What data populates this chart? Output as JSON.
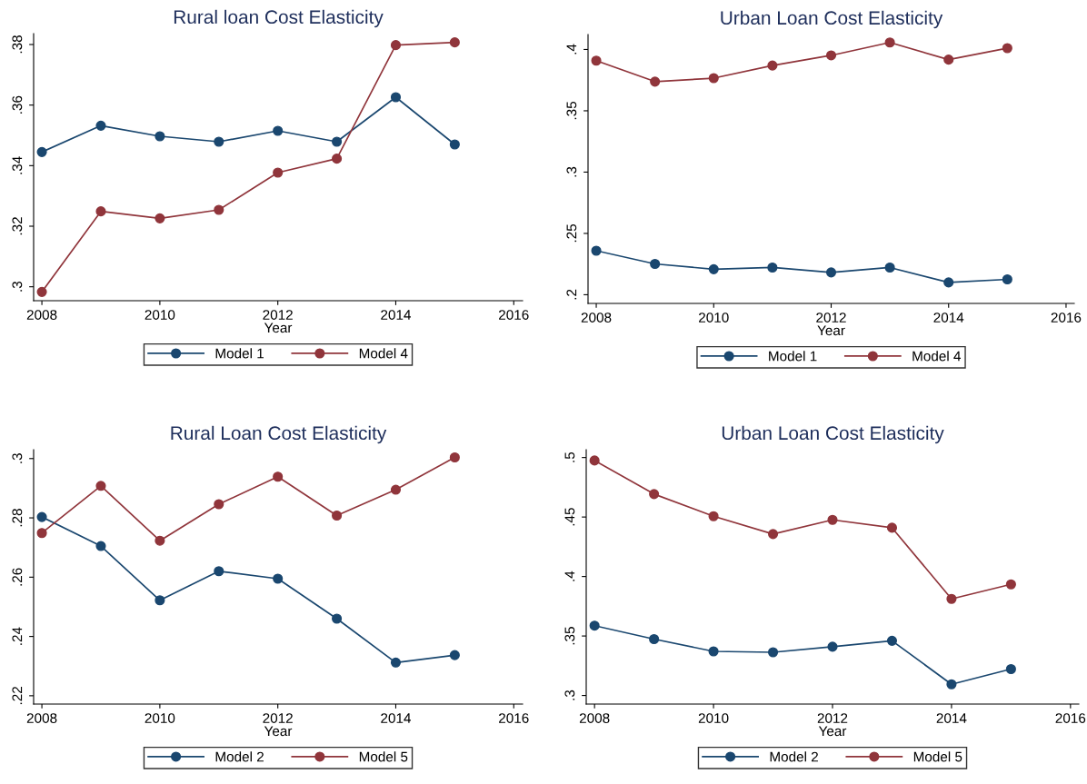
{
  "chart_data": [
    {
      "type": "line",
      "title": "Rural loan Cost Elasticity",
      "xlabel": "Year",
      "x": [
        2008,
        2009,
        2010,
        2011,
        2012,
        2013,
        2014,
        2015
      ],
      "series": [
        {
          "name": "Model 1",
          "color": "#1a476f",
          "values": [
            0.3445,
            0.3532,
            0.3497,
            0.3479,
            0.3515,
            0.3479,
            0.3626,
            0.347
          ]
        },
        {
          "name": "Model 4",
          "color": "#90353b",
          "values": [
            0.2983,
            0.3249,
            0.3226,
            0.3254,
            0.3377,
            0.3423,
            0.3798,
            0.3807
          ]
        }
      ],
      "xlim": [
        2007.86,
        2016.15
      ],
      "xticks": [
        2008,
        2010,
        2012,
        2014,
        2016
      ],
      "ylim": [
        0.2954,
        0.3836
      ],
      "yticks": [
        {
          "value": 0.3,
          "label": ".3"
        },
        {
          "value": 0.32,
          "label": ".32"
        },
        {
          "value": 0.34,
          "label": ".34"
        },
        {
          "value": 0.36,
          "label": ".36"
        },
        {
          "value": 0.38,
          "label": ".38"
        }
      ],
      "grid": false,
      "legend": "bottom",
      "marker": "circle",
      "line_style": "solid"
    },
    {
      "type": "line",
      "title": "Urban Loan Cost Elasticity",
      "xlabel": "Year",
      "x": [
        2008,
        2009,
        2010,
        2011,
        2012,
        2013,
        2014,
        2015
      ],
      "series": [
        {
          "name": "Model 1",
          "color": "#1a476f",
          "values": [
            0.2359,
            0.2251,
            0.2208,
            0.2222,
            0.2182,
            0.2222,
            0.21,
            0.2125
          ]
        },
        {
          "name": "Model 4",
          "color": "#90353b",
          "values": [
            0.3909,
            0.3738,
            0.3766,
            0.3869,
            0.3952,
            0.4057,
            0.3917,
            0.4011
          ]
        }
      ],
      "xlim": [
        2007.86,
        2016.14
      ],
      "xticks": [
        2008,
        2010,
        2012,
        2014,
        2016
      ],
      "ylim": [
        0.1929,
        0.4122
      ],
      "yticks": [
        {
          "value": 0.2,
          "label": ".2"
        },
        {
          "value": 0.25,
          "label": ".25"
        },
        {
          "value": 0.3,
          "label": ".3"
        },
        {
          "value": 0.35,
          "label": ".35"
        },
        {
          "value": 0.4,
          "label": ".4"
        }
      ],
      "grid": false,
      "legend": "bottom",
      "marker": "circle",
      "line_style": "solid"
    },
    {
      "type": "line",
      "title": "Rural Loan Cost Elasticity",
      "xlabel": "Year",
      "x": [
        2008,
        2009,
        2010,
        2011,
        2012,
        2013,
        2014,
        2015
      ],
      "series": [
        {
          "name": "Model 2",
          "color": "#1a476f",
          "values": [
            0.2803,
            0.2705,
            0.2522,
            0.262,
            0.2595,
            0.246,
            0.2312,
            0.2337
          ]
        },
        {
          "name": "Model 5",
          "color": "#90353b",
          "values": [
            0.2749,
            0.2908,
            0.2723,
            0.2846,
            0.2939,
            0.2808,
            0.2895,
            0.3004
          ]
        }
      ],
      "xlim": [
        2007.86,
        2016.15
      ],
      "xticks": [
        2008,
        2010,
        2012,
        2014,
        2016
      ],
      "ylim": [
        0.2172,
        0.303
      ],
      "yticks": [
        {
          "value": 0.22,
          "label": ".22"
        },
        {
          "value": 0.24,
          "label": ".24"
        },
        {
          "value": 0.26,
          "label": ".26"
        },
        {
          "value": 0.28,
          "label": ".28"
        },
        {
          "value": 0.3,
          "label": ".3"
        }
      ],
      "grid": false,
      "legend": "bottom",
      "marker": "circle",
      "line_style": "solid"
    },
    {
      "type": "line",
      "title": "Urban Loan Cost Elasticity",
      "xlabel": "Year",
      "x": [
        2008,
        2009,
        2010,
        2011,
        2012,
        2013,
        2014,
        2015
      ],
      "series": [
        {
          "name": "Model 2",
          "color": "#1a476f",
          "values": [
            0.3587,
            0.3474,
            0.3371,
            0.3363,
            0.341,
            0.346,
            0.3094,
            0.3222
          ]
        },
        {
          "name": "Model 5",
          "color": "#90353b",
          "values": [
            0.4975,
            0.4693,
            0.4507,
            0.4357,
            0.4476,
            0.441,
            0.3812,
            0.3934
          ]
        }
      ],
      "xlim": [
        2007.86,
        2016.14
      ],
      "xticks": [
        2008,
        2010,
        2012,
        2014,
        2016
      ],
      "ylim": [
        0.2928,
        0.5066
      ],
      "yticks": [
        {
          "value": 0.3,
          "label": ".3"
        },
        {
          "value": 0.35,
          "label": ".35"
        },
        {
          "value": 0.4,
          "label": ".4"
        },
        {
          "value": 0.45,
          "label": ".45"
        },
        {
          "value": 0.5,
          "label": ".5"
        }
      ],
      "grid": false,
      "legend": "bottom",
      "marker": "circle",
      "line_style": "solid"
    }
  ]
}
